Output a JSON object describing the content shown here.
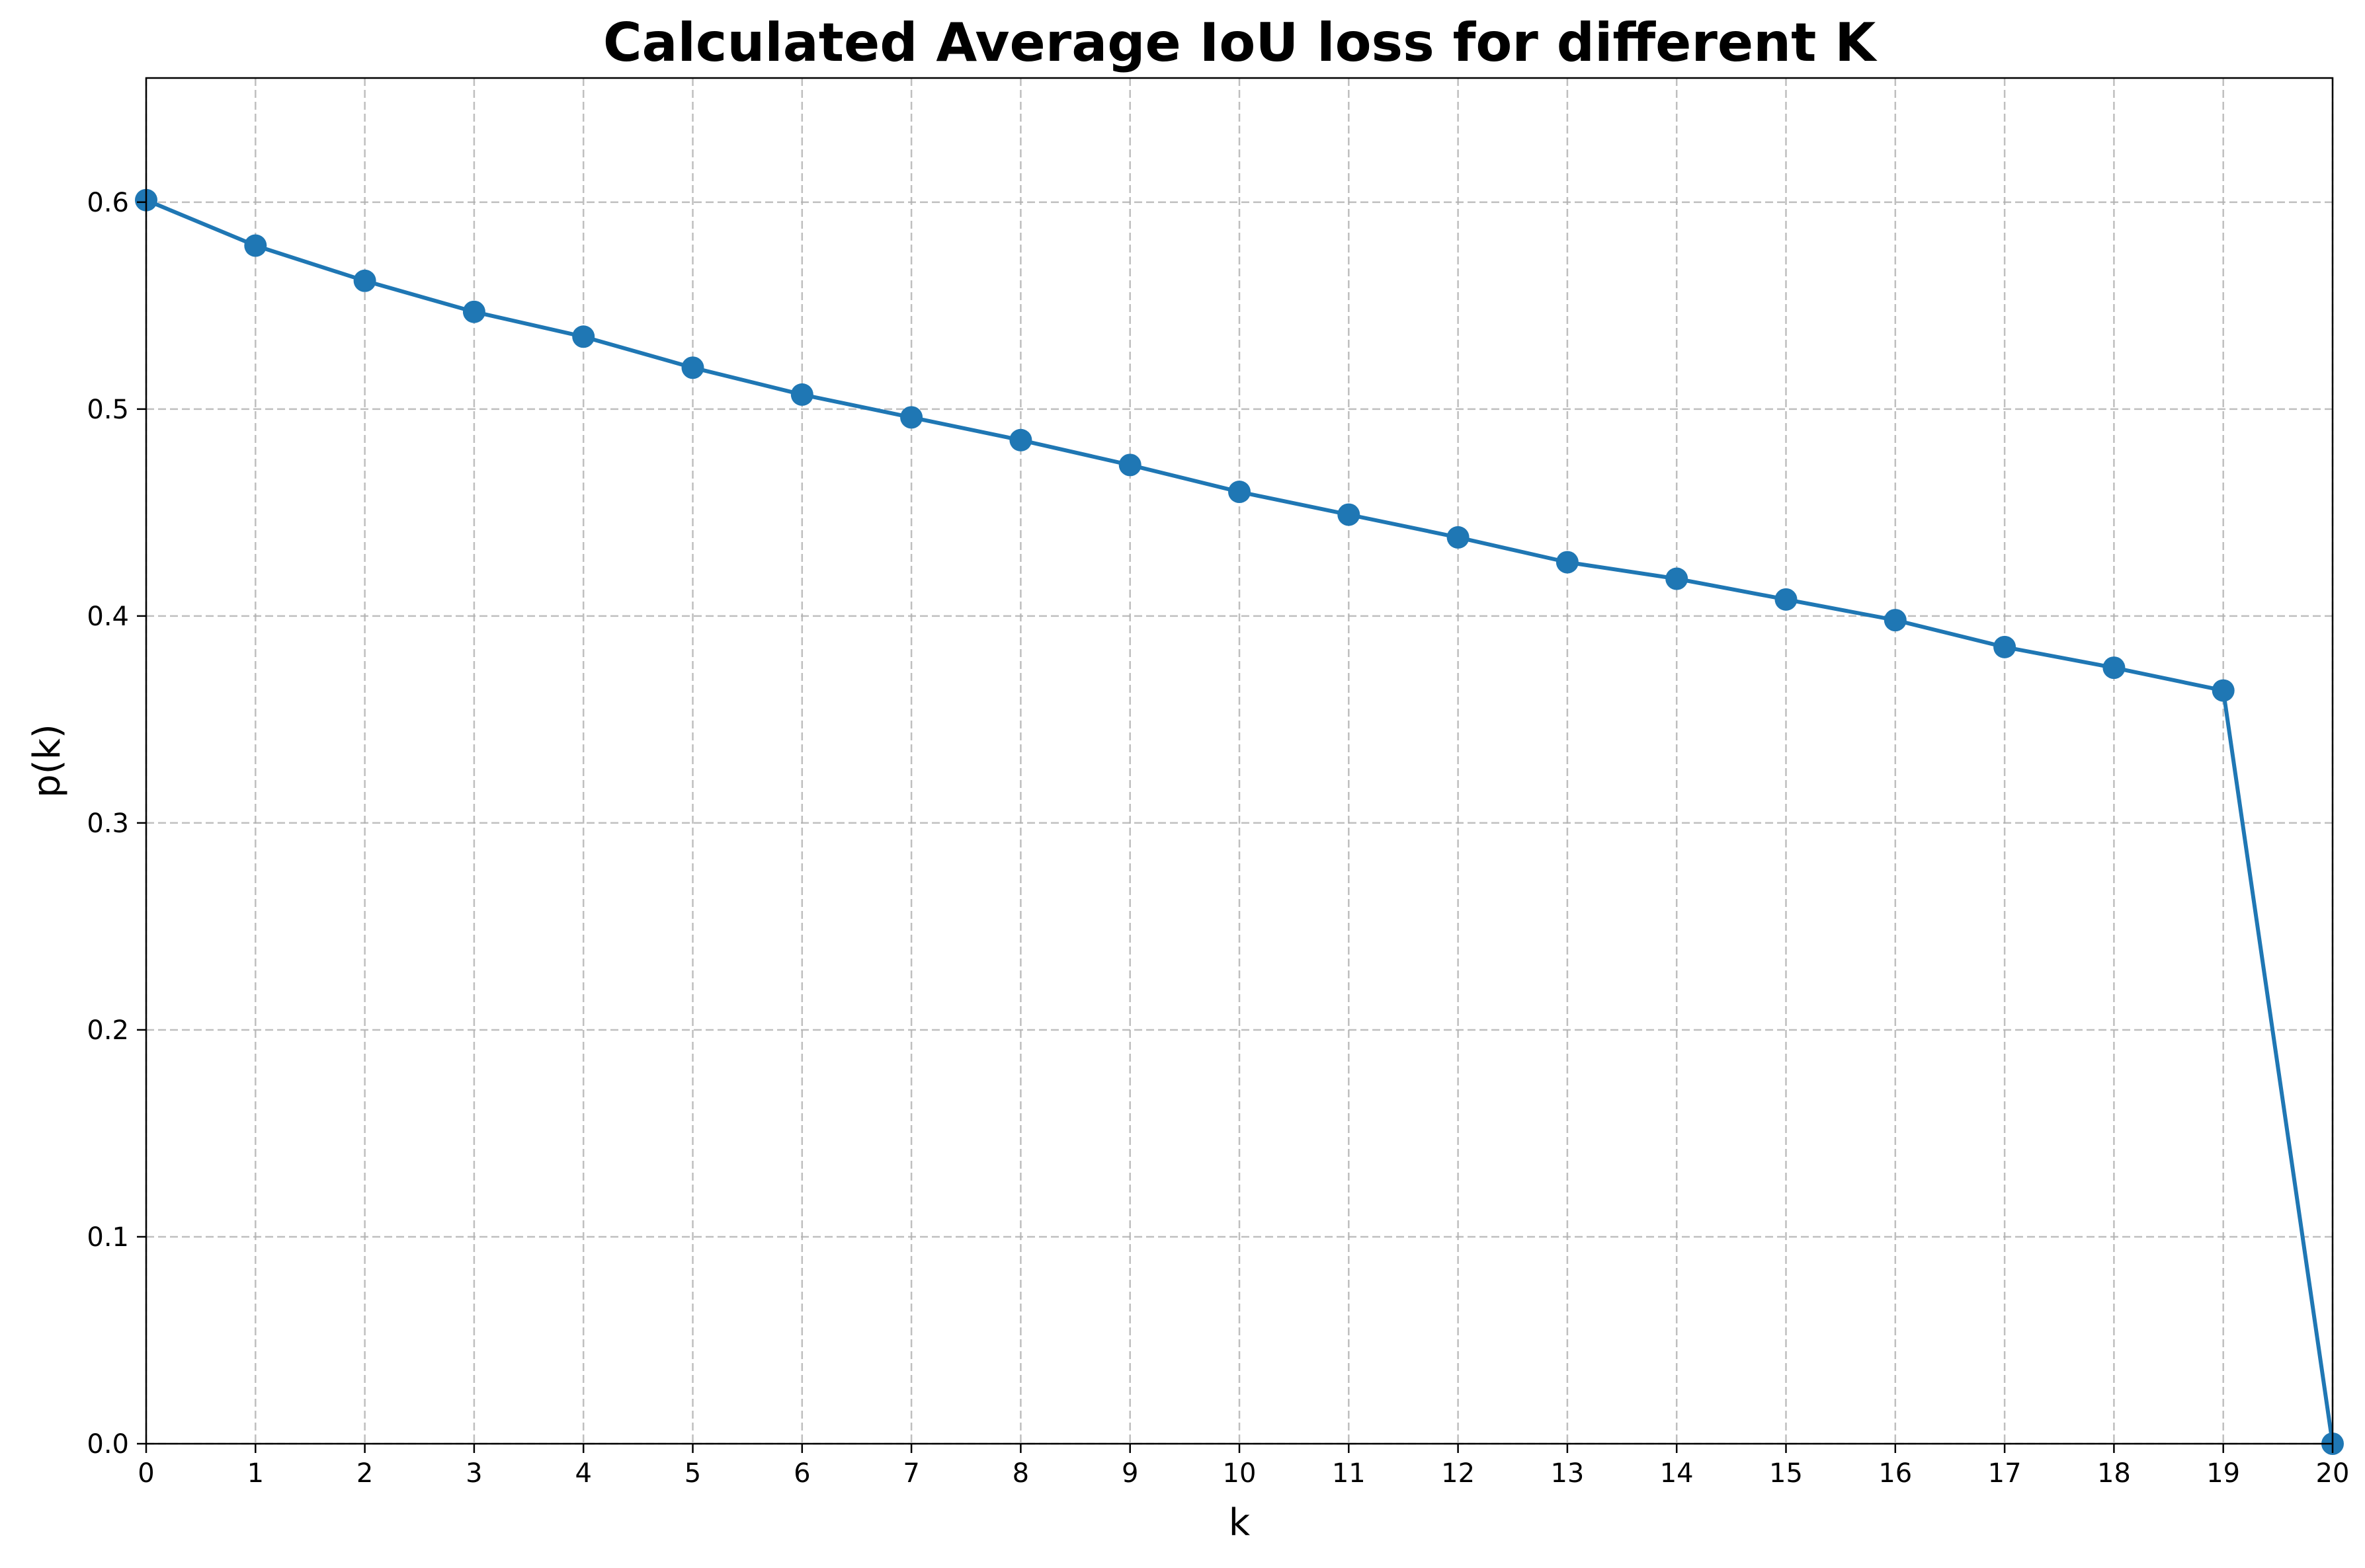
{
  "chart_data": {
    "type": "line",
    "title": "Calculated Average IoU loss for different K",
    "xlabel": "k",
    "ylabel": "p(k)",
    "xlim": [
      0,
      20
    ],
    "ylim": [
      0,
      0.66
    ],
    "xticks": [
      0,
      1,
      2,
      3,
      4,
      5,
      6,
      7,
      8,
      9,
      10,
      11,
      12,
      13,
      14,
      15,
      16,
      17,
      18,
      19,
      20
    ],
    "yticks": [
      0.0,
      0.1,
      0.2,
      0.3,
      0.4,
      0.5,
      0.6
    ],
    "ytick_labels": [
      "0.0",
      "0.1",
      "0.2",
      "0.3",
      "0.4",
      "0.5",
      "0.6"
    ],
    "grid": true,
    "legend": null,
    "series": [
      {
        "color": "#1f77b4",
        "marker": "circle",
        "x": [
          0,
          1,
          2,
          3,
          4,
          5,
          6,
          7,
          8,
          9,
          10,
          11,
          12,
          13,
          14,
          15,
          16,
          17,
          18,
          19,
          20
        ],
        "y": [
          0.601,
          0.579,
          0.562,
          0.547,
          0.535,
          0.52,
          0.507,
          0.496,
          0.485,
          0.473,
          0.46,
          0.449,
          0.438,
          0.426,
          0.418,
          0.408,
          0.398,
          0.385,
          0.375,
          0.364,
          0.0
        ]
      }
    ]
  }
}
